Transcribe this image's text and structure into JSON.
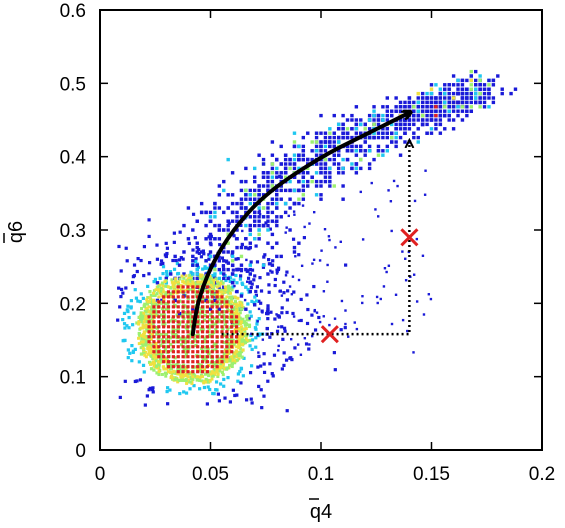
{
  "chart_data": {
    "type": "scatter",
    "title": "",
    "xlabel": "q4",
    "ylabel": "q6",
    "xlabel_overline": true,
    "ylabel_overline": true,
    "xlim": [
      0,
      0.2
    ],
    "ylim": [
      0,
      0.6
    ],
    "x_ticks": [
      0,
      0.05,
      0.1,
      0.15,
      0.2
    ],
    "x_tick_labels": [
      "0",
      "0.05",
      "0.1",
      "0.15",
      "0.2"
    ],
    "y_ticks": [
      0,
      0.1,
      0.2,
      0.3,
      0.4,
      0.5,
      0.6
    ],
    "y_tick_labels": [
      "0",
      "0.1",
      "0.2",
      "0.3",
      "0.4",
      "0.5",
      "0.6"
    ],
    "grid": false,
    "legend": "none",
    "density_colors": {
      "low": "#1a1ad8",
      "low_mid": "#20c8f0",
      "mid": "#9cf070",
      "high_mid": "#f0e040",
      "high": "#e02020"
    },
    "density_regions": [
      {
        "kind": "core",
        "x_center": 0.042,
        "y_center": 0.165,
        "x_sd": 0.012,
        "y_sd": 0.038,
        "level": "high"
      },
      {
        "kind": "halo",
        "x_center": 0.045,
        "y_center": 0.175,
        "x_sd": 0.02,
        "y_sd": 0.055,
        "level": "mid"
      },
      {
        "kind": "band",
        "path_x": [
          0.045,
          0.06,
          0.08,
          0.1,
          0.12,
          0.14,
          0.16,
          0.172
        ],
        "path_y": [
          0.2,
          0.3,
          0.36,
          0.4,
          0.43,
          0.455,
          0.475,
          0.495
        ],
        "level": "low"
      }
    ],
    "markers": [
      {
        "x": 0.104,
        "y": 0.158,
        "symbol": "x",
        "color": "#e02020"
      },
      {
        "x": 0.14,
        "y": 0.29,
        "symbol": "x",
        "color": "#e02020"
      }
    ],
    "arrows": [
      {
        "style": "solid",
        "color": "#000000",
        "points": [
          [
            0.042,
            0.158
          ],
          [
            0.044,
            0.2
          ],
          [
            0.05,
            0.25
          ],
          [
            0.06,
            0.3
          ],
          [
            0.075,
            0.35
          ],
          [
            0.1,
            0.4
          ],
          [
            0.12,
            0.43
          ],
          [
            0.14,
            0.46
          ]
        ]
      },
      {
        "style": "dotted",
        "color": "#000000",
        "points": [
          [
            0.055,
            0.158
          ],
          [
            0.14,
            0.158
          ],
          [
            0.14,
            0.42
          ]
        ]
      }
    ]
  }
}
